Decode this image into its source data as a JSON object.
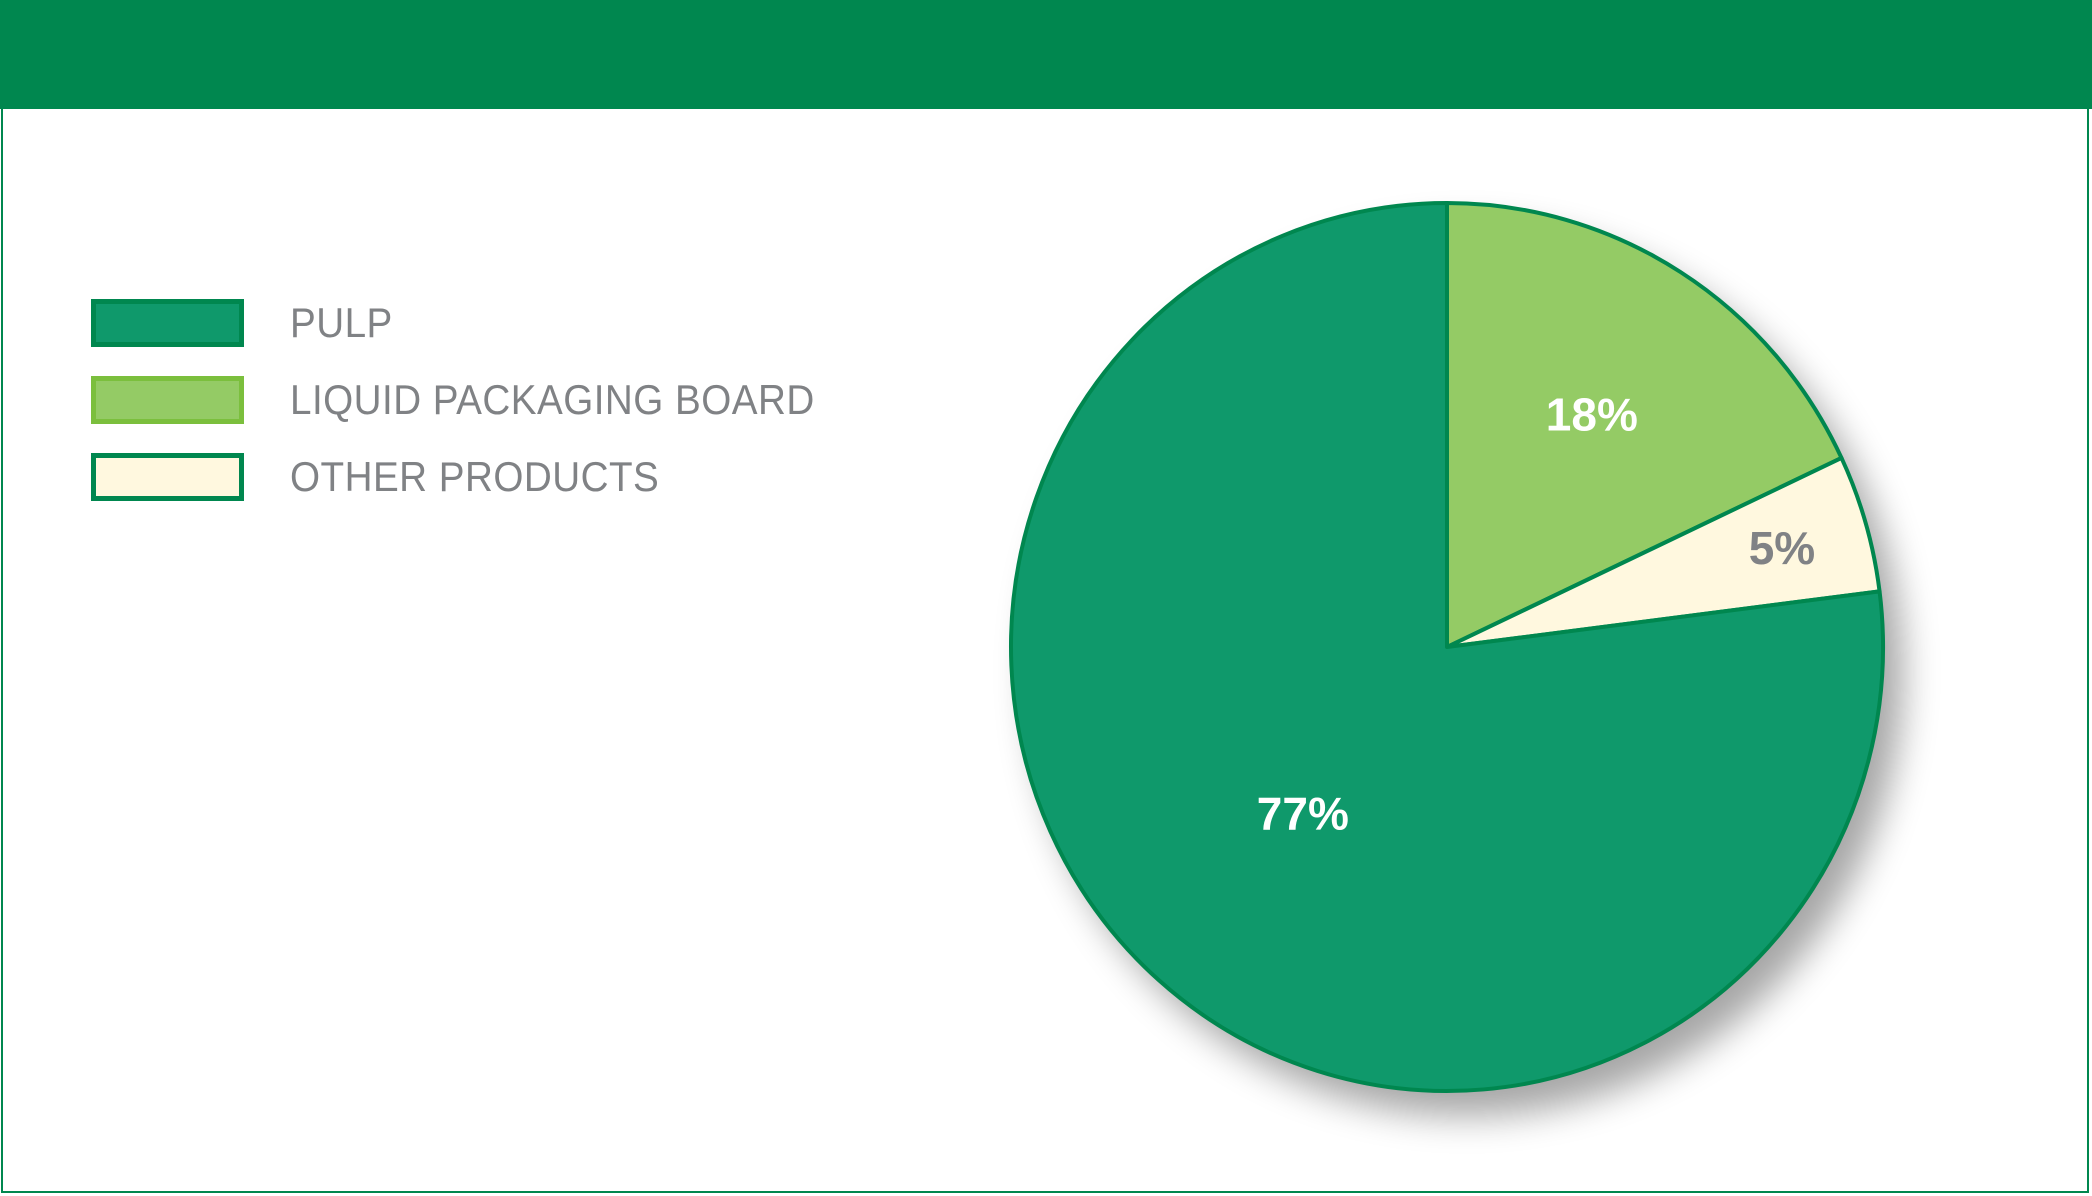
{
  "chart_data": {
    "type": "pie",
    "title": "",
    "slices": [
      {
        "name": "LIQUID PACKAGING BOARD",
        "value": 18,
        "label": "18%",
        "color": "#94cb65",
        "stroke": "#00874f",
        "label_color": "#ffffff"
      },
      {
        "name": "OTHER PRODUCTS",
        "value": 5,
        "label": "5%",
        "color": "#fff8df",
        "stroke": "#00874f",
        "label_color": "#808285"
      },
      {
        "name": "PULP",
        "value": 77,
        "label": "77%",
        "color": "#0f996b",
        "stroke": "#00874f",
        "label_color": "#ffffff"
      }
    ],
    "start": "top",
    "direction": "clockwise",
    "legend_placement": "left",
    "legend": [
      {
        "label": "PULP",
        "color": "#0f996b",
        "border": "#00874f"
      },
      {
        "label": "LIQUID PACKAGING BOARD",
        "color": "#94cb65",
        "border": "#7bbf3d"
      },
      {
        "label": "OTHER PRODUCTS",
        "color": "#fff8df",
        "border": "#00874f"
      }
    ]
  },
  "colors": {
    "header": "#00874f",
    "legend_text": "#808285"
  }
}
